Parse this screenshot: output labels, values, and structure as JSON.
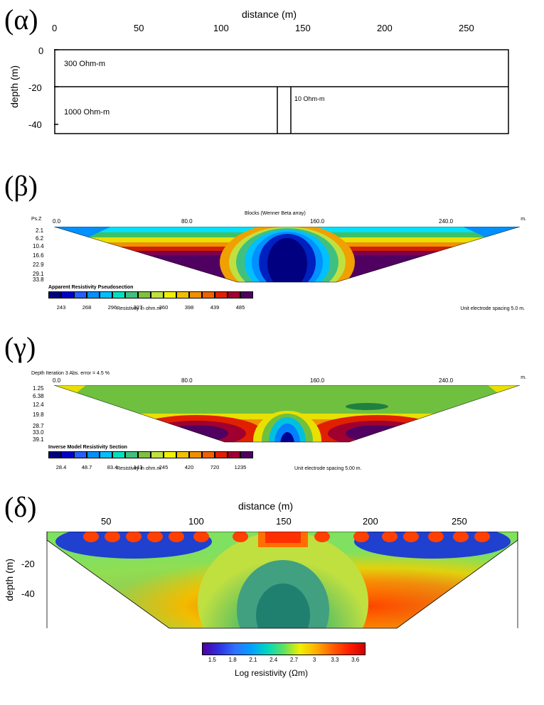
{
  "panelA": {
    "label": "(α)",
    "x_title": "distance (m)",
    "y_title": "depth (m)",
    "x_ticks": [
      "0",
      "50",
      "100",
      "150",
      "200",
      "250"
    ],
    "y_ticks": [
      "0",
      "-20",
      "-40"
    ],
    "xlim": [
      0,
      275
    ],
    "ylim": [
      -45,
      0
    ],
    "layers": {
      "top": {
        "label": "300 Ohm-m",
        "y_range": [
          0,
          -20
        ],
        "resistivity_ohm_m": 300
      },
      "bottom": {
        "label": "1000 Ohm-m",
        "y_range": [
          -20,
          -45
        ],
        "resistivity_ohm_m": 1000
      },
      "dyke": {
        "label": "10 Ohm-m",
        "x_range": [
          135,
          143
        ],
        "y_range": [
          -20,
          -45
        ],
        "resistivity_ohm_m": 10
      }
    },
    "border_color": "#000000",
    "background_color": "#ffffff",
    "line_width": 1.5
  },
  "panelB": {
    "label": "(β)",
    "title_small": "Blocks (Wenner Beta array)",
    "left_axis_label": "Ps.Z",
    "right_axis_label": "m.",
    "x_ticks": [
      "0.0",
      "80.0",
      "160.0",
      "240.0"
    ],
    "y_ticks": [
      "2.1",
      "6.2",
      "10.4",
      "16.6",
      "22.9",
      "29.1",
      "33.8"
    ],
    "xlim": [
      0,
      280
    ],
    "ylim": [
      2.1,
      33.8
    ],
    "section_type": "pseudosection",
    "trapezoid_top_x": [
      0,
      280
    ],
    "trapezoid_bottom_x": [
      120,
      160
    ],
    "caption1": "Apparent Resistivity Pseudosection",
    "caption2": "Resistivity in ohm.m",
    "footer": "Unit electrode spacing 5.0 m.",
    "colorbar_colors": [
      "#000080",
      "#0000c8",
      "#2560ff",
      "#0090ff",
      "#00c0ff",
      "#00e0c0",
      "#40c080",
      "#80c040",
      "#c0e040",
      "#f0f000",
      "#f0c000",
      "#f09000",
      "#f06000",
      "#e02000",
      "#a00030",
      "#500060"
    ],
    "colorbar_values": [
      "243",
      "268",
      "296",
      "327",
      "360",
      "398",
      "439",
      "485"
    ]
  },
  "panelC": {
    "label": "(γ)",
    "title_small": "Depth    Iteration 3 Abs. error = 4.5 %",
    "right_axis_label": "m.",
    "x_ticks": [
      "0.0",
      "80.0",
      "160.0",
      "240.0"
    ],
    "y_ticks": [
      "1.25",
      "6.38",
      "12.4",
      "19.8",
      "28.7",
      "33.0",
      "39.1"
    ],
    "xlim": [
      0,
      280
    ],
    "ylim": [
      1.25,
      39.1
    ],
    "section_type": "inverse_model",
    "caption1": "Inverse Model Resistivity Section",
    "caption2": "Resistivity in ohm.m",
    "footer": "Unit electrode spacing 5.00 m.",
    "colorbar_colors": [
      "#000080",
      "#0000c8",
      "#2560ff",
      "#0090ff",
      "#00c0ff",
      "#00e0c0",
      "#40c080",
      "#80c040",
      "#c0e040",
      "#f0f000",
      "#f0c000",
      "#f09000",
      "#f06000",
      "#e02000",
      "#a00030",
      "#500060"
    ],
    "colorbar_values": [
      "28.4",
      "48.7",
      "83.4",
      "143",
      "245",
      "420",
      "720",
      "1235"
    ]
  },
  "panelD": {
    "label": "(δ)",
    "x_title": "distance (m)",
    "y_title": "depth (m)",
    "x_ticks": [
      "50",
      "100",
      "150",
      "200",
      "250"
    ],
    "y_ticks": [
      "-20",
      "-40"
    ],
    "xlim": [
      20,
      290
    ],
    "ylim": [
      -60,
      0
    ],
    "colorbar_title": "Log  resistivity (Ωm)",
    "colorbar_ticks": [
      "1.5",
      "1.8",
      "2.1",
      "2.4",
      "2.7",
      "3",
      "3.3",
      "3.6"
    ],
    "colorbar_gradient": [
      "#5000a0",
      "#3030e0",
      "#3070ff",
      "#00a0ff",
      "#00d8c0",
      "#60e060",
      "#f0f000",
      "#ffb000",
      "#ff6000",
      "#ff2000",
      "#d00000"
    ]
  }
}
